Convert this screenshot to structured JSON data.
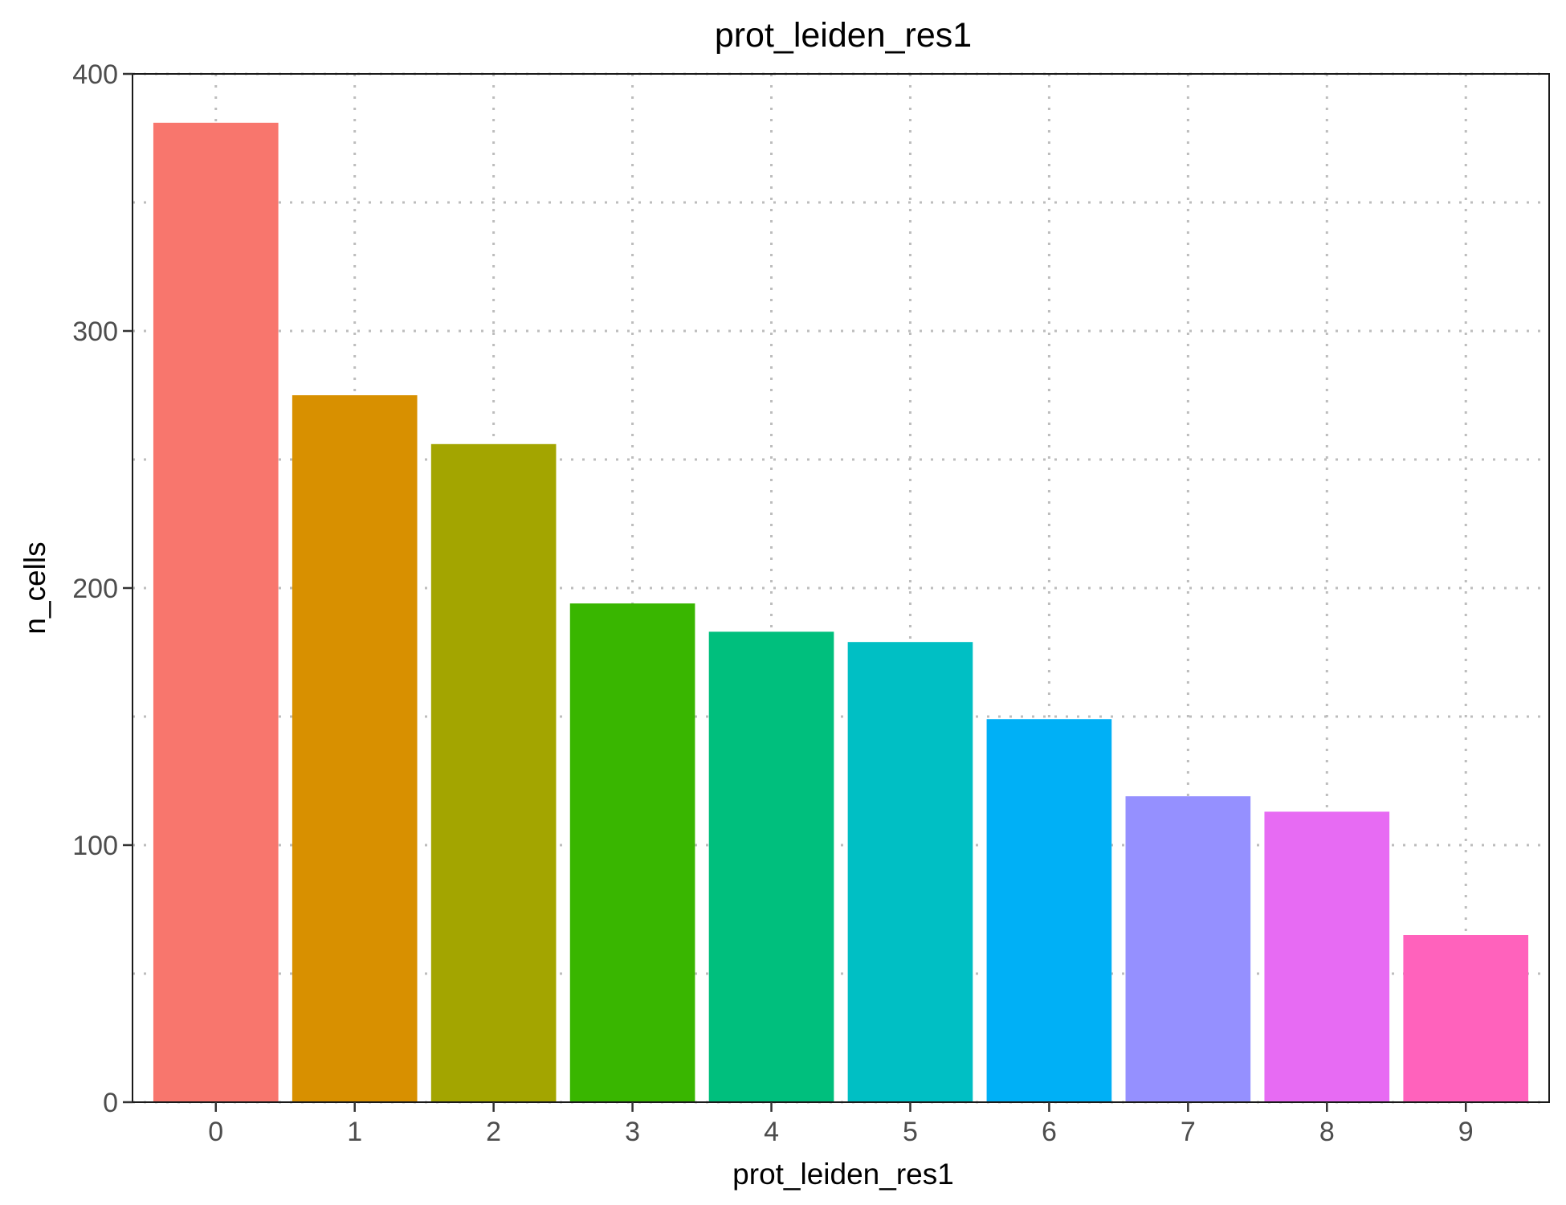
{
  "chart_data": {
    "type": "bar",
    "title": "prot_leiden_res1",
    "xlabel": "prot_leiden_res1",
    "ylabel": "n_cells",
    "categories": [
      "0",
      "1",
      "2",
      "3",
      "4",
      "5",
      "6",
      "7",
      "8",
      "9"
    ],
    "values": [
      381,
      275,
      256,
      194,
      183,
      179,
      149,
      119,
      113,
      65
    ],
    "colors": [
      "#F8766D",
      "#D89000",
      "#A3A500",
      "#39B600",
      "#00BF7D",
      "#00BFC4",
      "#00B0F6",
      "#9590FF",
      "#E76BF3",
      "#FF62BC"
    ],
    "ylim": [
      0,
      400
    ],
    "yticks": [
      0,
      100,
      200,
      300,
      400
    ],
    "yticklabels": [
      "0",
      "100",
      "200",
      "300",
      "400"
    ],
    "grid": "dotted major and minor lines",
    "legend": "none"
  }
}
